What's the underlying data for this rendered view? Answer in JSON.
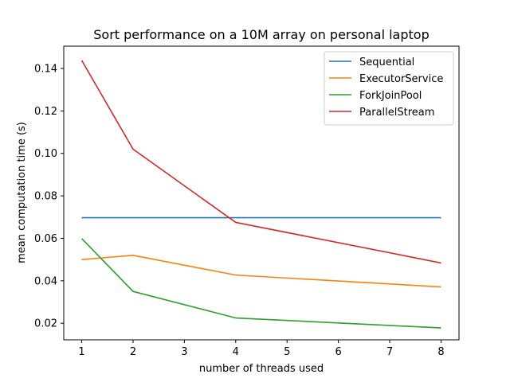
{
  "chart_data": {
    "type": "line",
    "title": "Sort performance on a 10M array on personal laptop",
    "xlabel": "number of threads used",
    "ylabel": "mean computation time (s)",
    "xlim": [
      0.65,
      8.35
    ],
    "ylim": [
      0.0122,
      0.1505
    ],
    "xticks": [
      1,
      2,
      3,
      4,
      5,
      6,
      7,
      8
    ],
    "yticks": [
      0.02,
      0.04,
      0.06,
      0.08,
      0.1,
      0.12,
      0.14
    ],
    "ytick_labels": [
      "0.02",
      "0.04",
      "0.06",
      "0.08",
      "0.10",
      "0.12",
      "0.14"
    ],
    "legend_position": "top-right",
    "grid": false,
    "series": [
      {
        "name": "Sequential",
        "color": "#1f77b4",
        "x": [
          1,
          2,
          4,
          8
        ],
        "y": [
          0.0697,
          0.0697,
          0.0697,
          0.0697
        ]
      },
      {
        "name": "ExecutorService",
        "color": "#ff7f0e",
        "x": [
          1,
          2,
          4,
          8
        ],
        "y": [
          0.05,
          0.052,
          0.0427,
          0.0371
        ]
      },
      {
        "name": "ForkJoinPool",
        "color": "#2ca02c",
        "x": [
          1,
          2,
          4,
          8
        ],
        "y": [
          0.0599,
          0.035,
          0.0225,
          0.0178
        ]
      },
      {
        "name": "ParallelStream",
        "color": "#d62728",
        "x": [
          1,
          2,
          4,
          8
        ],
        "y": [
          0.1438,
          0.102,
          0.0675,
          0.0484
        ]
      }
    ]
  }
}
